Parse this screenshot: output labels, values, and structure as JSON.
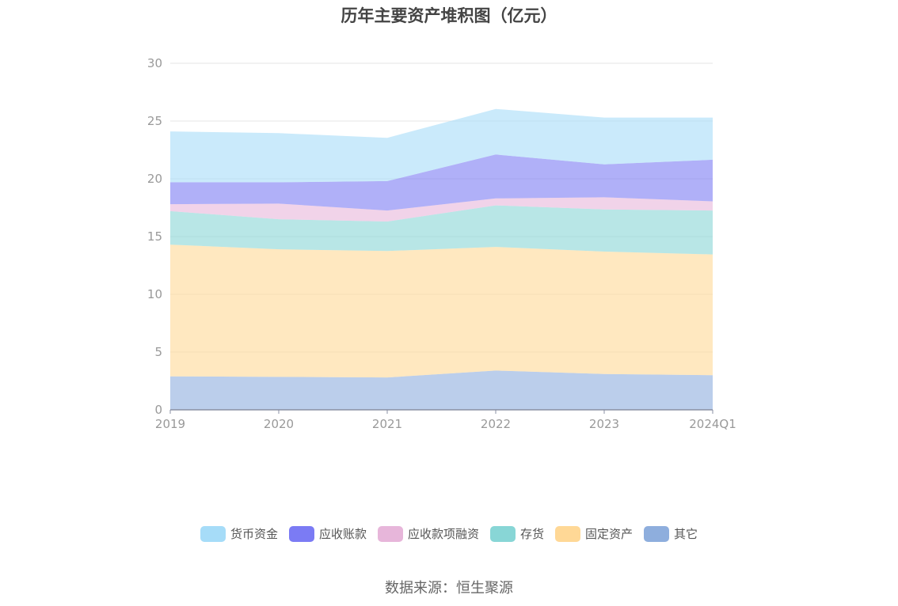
{
  "chart_data": {
    "type": "area",
    "stacked": true,
    "title": "历年主要资产堆积图（亿元）",
    "xlabel": "",
    "ylabel": "",
    "categories": [
      "2019",
      "2020",
      "2021",
      "2022",
      "2023",
      "2024Q1"
    ],
    "ylim": [
      0,
      30
    ],
    "yticks": [
      0,
      5,
      10,
      15,
      20,
      25,
      30
    ],
    "grid": true,
    "legend_position": "bottom",
    "series": [
      {
        "name": "其它",
        "color": "#8eaedd",
        "values": [
          2.9,
          2.85,
          2.8,
          3.4,
          3.1,
          3.0
        ]
      },
      {
        "name": "固定资产",
        "color": "#ffd896",
        "values": [
          11.4,
          11.05,
          10.95,
          10.7,
          10.6,
          10.45
        ]
      },
      {
        "name": "存货",
        "color": "#88d6d6",
        "values": [
          2.9,
          2.6,
          2.55,
          3.6,
          3.65,
          3.8
        ]
      },
      {
        "name": "应收款项融资",
        "color": "#e7b6da",
        "values": [
          0.6,
          1.35,
          0.95,
          0.6,
          1.05,
          0.8
        ]
      },
      {
        "name": "应收账款",
        "color": "#7b7bf4",
        "values": [
          1.9,
          1.85,
          2.55,
          3.8,
          2.85,
          3.6
        ]
      },
      {
        "name": "货币资金",
        "color": "#a6dcf8",
        "values": [
          4.4,
          4.25,
          3.75,
          3.95,
          4.05,
          3.65
        ]
      }
    ]
  },
  "legend_order": [
    "货币资金",
    "应收账款",
    "应收款项融资",
    "存货",
    "固定资产",
    "其它"
  ],
  "source": "数据来源：恒生聚源"
}
